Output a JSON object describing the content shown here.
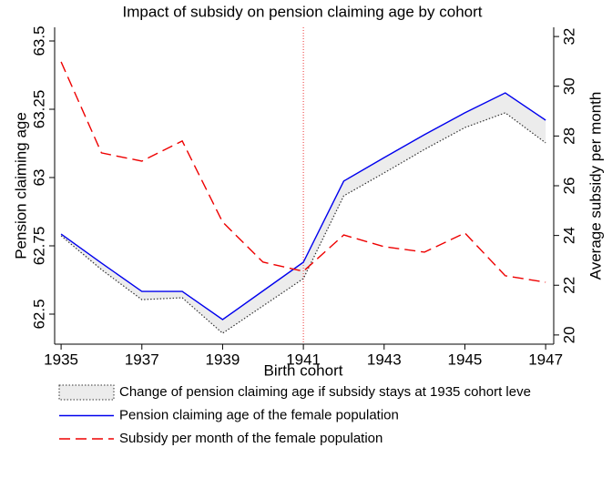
{
  "chart_data": {
    "type": "line",
    "title": "Impact of subsidy on pension claiming age by cohort",
    "x_label": "Birth cohort",
    "y_label": "Pension claiming age",
    "y2_label": "Average subsidy per month",
    "x": [
      1935,
      1936,
      1937,
      1938,
      1939,
      1940,
      1941,
      1942,
      1943,
      1944,
      1945,
      1946,
      1947
    ],
    "xlim": [
      1934.84,
      1947.2
    ],
    "xticks": [
      1935,
      1937,
      1939,
      1941,
      1943,
      1945,
      1947
    ],
    "ylim": [
      62.39,
      63.55
    ],
    "yticks": [
      62.5,
      62.75,
      63,
      63.25,
      63.5
    ],
    "y2lim": [
      19.63,
      32.37
    ],
    "y2ticks": [
      20,
      22,
      24,
      26,
      28,
      30,
      32
    ],
    "vline": 1941,
    "series": [
      {
        "name": "Change of pension claiming age if subsidy stays at 1935 cohort leve",
        "color": "#333333",
        "dash": "dotted",
        "band": true,
        "band_color": "#ececec",
        "values": [
          62.787,
          62.663,
          62.553,
          62.56,
          62.43,
          62.53,
          62.63,
          62.933,
          63.017,
          63.103,
          63.183,
          63.237,
          63.127
        ]
      },
      {
        "name": "Pension claiming age of the female population",
        "color": "#0000ee",
        "dash": "solid",
        "values": [
          62.793,
          62.687,
          62.583,
          62.583,
          62.48,
          62.585,
          62.69,
          62.987,
          63.073,
          63.157,
          63.237,
          63.31,
          63.21
        ]
      },
      {
        "name": "Subsidy per month of the female population",
        "color": "#ee0000",
        "dash": "dashed",
        "axis": "y2",
        "values": [
          30.98,
          27.32,
          26.99,
          27.8,
          24.54,
          22.93,
          22.56,
          24.02,
          23.55,
          23.33,
          24.1,
          22.38,
          22.12
        ]
      }
    ]
  }
}
